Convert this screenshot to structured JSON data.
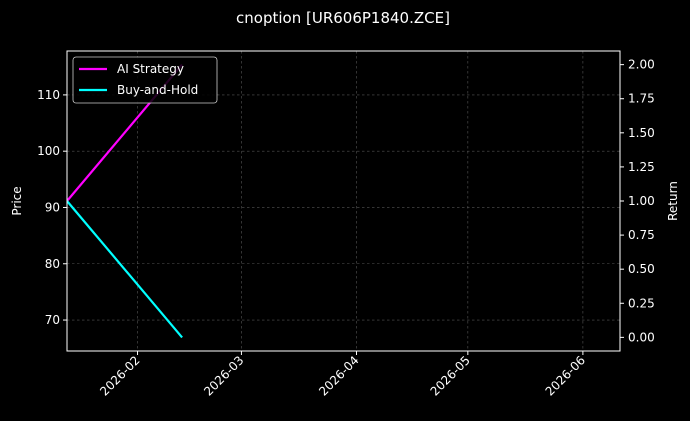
{
  "chart_data": {
    "type": "line",
    "title": "cnoption [UR606P1840.ZCE]",
    "xlabel": "",
    "ylabel": "Price",
    "y2label": "Return",
    "x_type": "date",
    "xlim": [
      "2026-01-13",
      "2026-06-11"
    ],
    "ylim": [
      64.5,
      117.8
    ],
    "y2lim": [
      -0.1,
      2.1
    ],
    "x_ticks": [
      "2026-02",
      "2026-03",
      "2026-04",
      "2026-05",
      "2026-06"
    ],
    "y_ticks": [
      70,
      80,
      90,
      100,
      110
    ],
    "y2_ticks": [
      "0.00",
      "0.25",
      "0.50",
      "0.75",
      "1.00",
      "1.25",
      "1.50",
      "1.75",
      "2.00"
    ],
    "grid": true,
    "legend_position": "top-left",
    "series": [
      {
        "name": "AI Strategy",
        "color": "#ff00ff",
        "axis": "right",
        "x": [
          "2026-01-13",
          "2026-02-13"
        ],
        "y": [
          1.0,
          2.0
        ]
      },
      {
        "name": "Buy-and-Hold",
        "color": "#00ffff",
        "axis": "right",
        "x": [
          "2026-01-13",
          "2026-02-13"
        ],
        "y": [
          1.0,
          0.0
        ]
      }
    ]
  }
}
